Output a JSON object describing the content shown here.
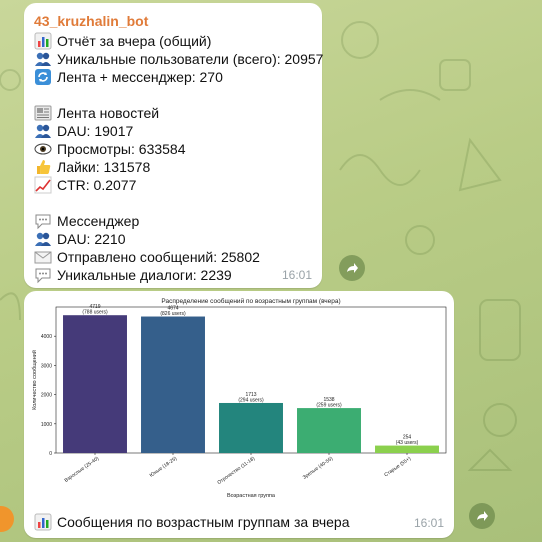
{
  "message1": {
    "sender": "43_kruzhalin_bot",
    "lines": [
      {
        "icon": "bar-chart-icon",
        "text": "Отчёт за вчера (общий)"
      },
      {
        "icon": "users-icon",
        "text": "Уникальные пользователи (всего): 20957"
      },
      {
        "icon": "cycle-arrows-icon",
        "text": "Лента + мессенджер: 270"
      },
      {
        "icon": "newspaper-icon",
        "text": "Лента новостей"
      },
      {
        "icon": "users-icon",
        "text": "DAU: 19017"
      },
      {
        "icon": "eye-icon",
        "text": "Просмотры: 633584"
      },
      {
        "icon": "thumbs-up-icon",
        "text": "Лайки: 131578"
      },
      {
        "icon": "trend-up-icon",
        "text": "CTR: 0.2077"
      },
      {
        "icon": "speech-bubble-icon",
        "text": "Мессенджер"
      },
      {
        "icon": "users-icon",
        "text": "DAU: 2210"
      },
      {
        "icon": "envelope-icon",
        "text": "Отправлено сообщений: 25802"
      },
      {
        "icon": "speech-bubble-icon",
        "text": "Уникальные диалоги: 2239"
      }
    ],
    "time": "16:01"
  },
  "message2": {
    "caption": "Сообщения по возрастным группам за вчера",
    "caption_icon": "bar-chart-icon",
    "time": "16:01"
  },
  "chart_data": {
    "type": "bar",
    "title": "Распределение сообщений по возрастным группам (вчера)",
    "xlabel": "Возрастная группа",
    "ylabel": "Количество сообщений",
    "categories": [
      "Взрослые (25-40)",
      "Юные (18-25)",
      "Отрочество (11-18)",
      "Зрелые (40-55)",
      "Старые (55+)"
    ],
    "values": [
      4719,
      4674,
      1713,
      1538,
      254
    ],
    "labels": [
      "4719\n(788 users)",
      "4674\n(826 users)",
      "1713\n(294 users)",
      "1538\n(259 users)",
      "254\n(43 users)"
    ],
    "colors": [
      "#453a79",
      "#355f8b",
      "#23857d",
      "#3cad72",
      "#8bd04d"
    ],
    "ylim": [
      0,
      5000
    ],
    "yticks": [
      0,
      1000,
      2000,
      3000,
      4000
    ],
    "grid": false
  },
  "colors": {
    "sender": "#e07b39",
    "accent_dot": "#f0952c"
  }
}
